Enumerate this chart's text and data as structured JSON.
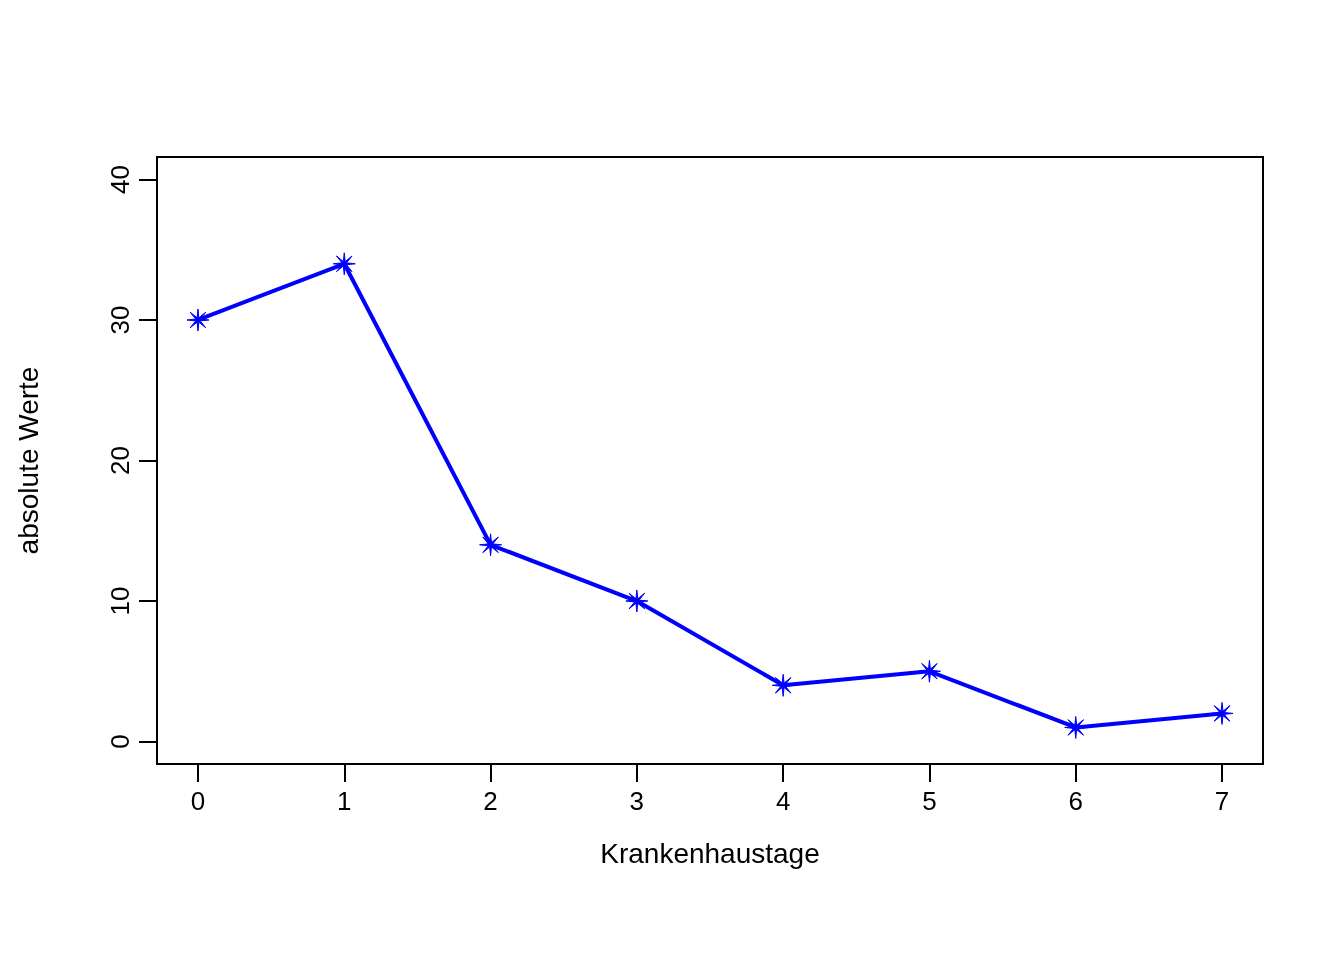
{
  "chart_data": {
    "type": "line",
    "xlabel": "Krankenhaustage",
    "ylabel": "absolute Werte",
    "x": [
      0,
      1,
      2,
      3,
      4,
      5,
      6,
      7
    ],
    "series": [
      {
        "color": "#0000ff",
        "values": [
          30,
          34,
          14,
          10,
          4,
          5,
          1,
          2
        ]
      }
    ],
    "xlim": [
      -0.28,
      7.28
    ],
    "xticks": [
      0,
      1,
      2,
      3,
      4,
      5,
      6,
      7
    ],
    "ylim": [
      -1.6,
      41.6
    ],
    "yticks": [
      0,
      10,
      20,
      30,
      40
    ],
    "grid": false,
    "marker": "star",
    "line_style": "solid"
  }
}
